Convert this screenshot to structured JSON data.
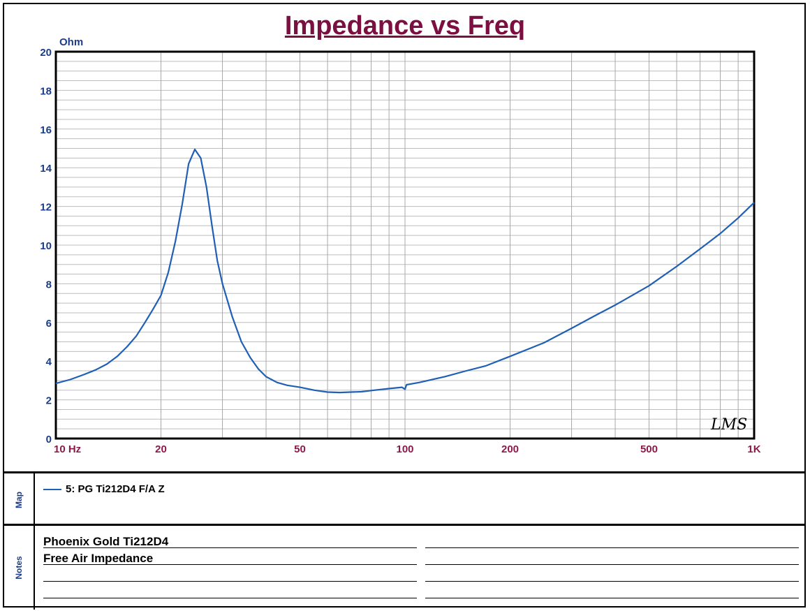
{
  "chart_data": {
    "type": "line",
    "title": "Impedance vs Freq",
    "ylabel": "Ohm",
    "xlabel": "",
    "x_scale": "log",
    "xlim": [
      10,
      1000
    ],
    "ylim": [
      0,
      20
    ],
    "yticks": [
      "0",
      "2",
      "4",
      "6",
      "8",
      "10",
      "12",
      "14",
      "16",
      "18",
      "20"
    ],
    "xticks": [
      {
        "value": 10,
        "label": "10 Hz"
      },
      {
        "value": 20,
        "label": "20"
      },
      {
        "value": 50,
        "label": "50"
      },
      {
        "value": 100,
        "label": "100"
      },
      {
        "value": 200,
        "label": "200"
      },
      {
        "value": 500,
        "label": "500"
      },
      {
        "value": 1000,
        "label": "1K"
      }
    ],
    "grid": true,
    "series": [
      {
        "name": "5: PG Ti212D4  F/A Z",
        "color": "#1f5fb5",
        "x": [
          10,
          11,
          12,
          13,
          14,
          15,
          16,
          17,
          18,
          19,
          20,
          21,
          22,
          23,
          24,
          25,
          26,
          27,
          28,
          29,
          30,
          32,
          34,
          36,
          38,
          40,
          43,
          46,
          50,
          55,
          60,
          65,
          70,
          75,
          80,
          90,
          98,
          100,
          101,
          110,
          130,
          150,
          170,
          200,
          250,
          300,
          350,
          400,
          500,
          600,
          700,
          800,
          900,
          1000
        ],
        "values": [
          2.85,
          3.05,
          3.3,
          3.55,
          3.85,
          4.25,
          4.75,
          5.3,
          6.0,
          6.7,
          7.4,
          8.6,
          10.2,
          12.1,
          14.2,
          14.95,
          14.5,
          13.0,
          11.0,
          9.2,
          8.0,
          6.3,
          5.0,
          4.2,
          3.6,
          3.2,
          2.9,
          2.75,
          2.65,
          2.5,
          2.4,
          2.38,
          2.4,
          2.42,
          2.48,
          2.58,
          2.65,
          2.55,
          2.78,
          2.9,
          3.2,
          3.5,
          3.75,
          4.25,
          4.95,
          5.7,
          6.35,
          6.9,
          7.9,
          8.9,
          9.8,
          10.6,
          11.4,
          12.2
        ]
      }
    ]
  },
  "logo_text": "LMS",
  "map": {
    "label": "Map",
    "entries": [
      {
        "name": "5: PG Ti212D4  F/A Z",
        "color": "#1f5fb5"
      }
    ]
  },
  "notes": {
    "label": "Notes",
    "lines": [
      "Phoenix Gold Ti212D4",
      "Free Air Impedance"
    ]
  }
}
